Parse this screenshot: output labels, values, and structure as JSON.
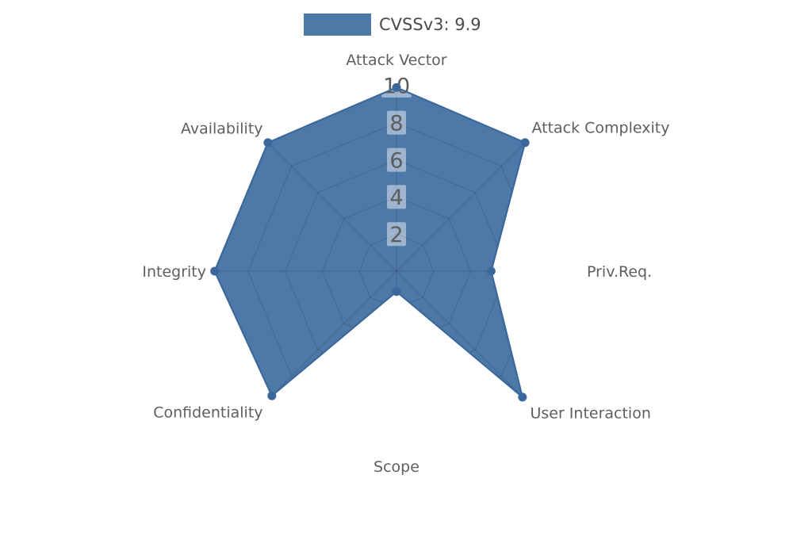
{
  "legend": {
    "label": "CVSSv3: 9.9",
    "swatch_color": "#4d79a8"
  },
  "chart_data": {
    "type": "radar",
    "title": "CVSSv3: 9.9",
    "axes": [
      "Attack Vector",
      "Attack Complexity",
      "Priv.Req.",
      "User Interaction",
      "Scope",
      "Confidentiality",
      "Integrity",
      "Availability"
    ],
    "series": [
      {
        "name": "CVSSv3: 9.9",
        "values": [
          9.9,
          9.8,
          5.1,
          9.6,
          1.1,
          9.5,
          9.8,
          9.8
        ]
      }
    ],
    "ticks": [
      2,
      4,
      6,
      8,
      10
    ],
    "rmax": 10,
    "grid": "polygon-web-clipped-to-fill",
    "legend_position": "top-center",
    "colors": {
      "fill": "#4d79a8",
      "stroke": "#3b689b",
      "marker": "#3b689b",
      "grid_line": "rgba(25,35,50,0.18)",
      "axis_label": "#5e5e5e",
      "tick_label": "#5d5d5d",
      "tick_box": "rgba(255,255,255,0.45)",
      "legend_text": "#4a4a4a",
      "background": "#ffffff"
    }
  }
}
